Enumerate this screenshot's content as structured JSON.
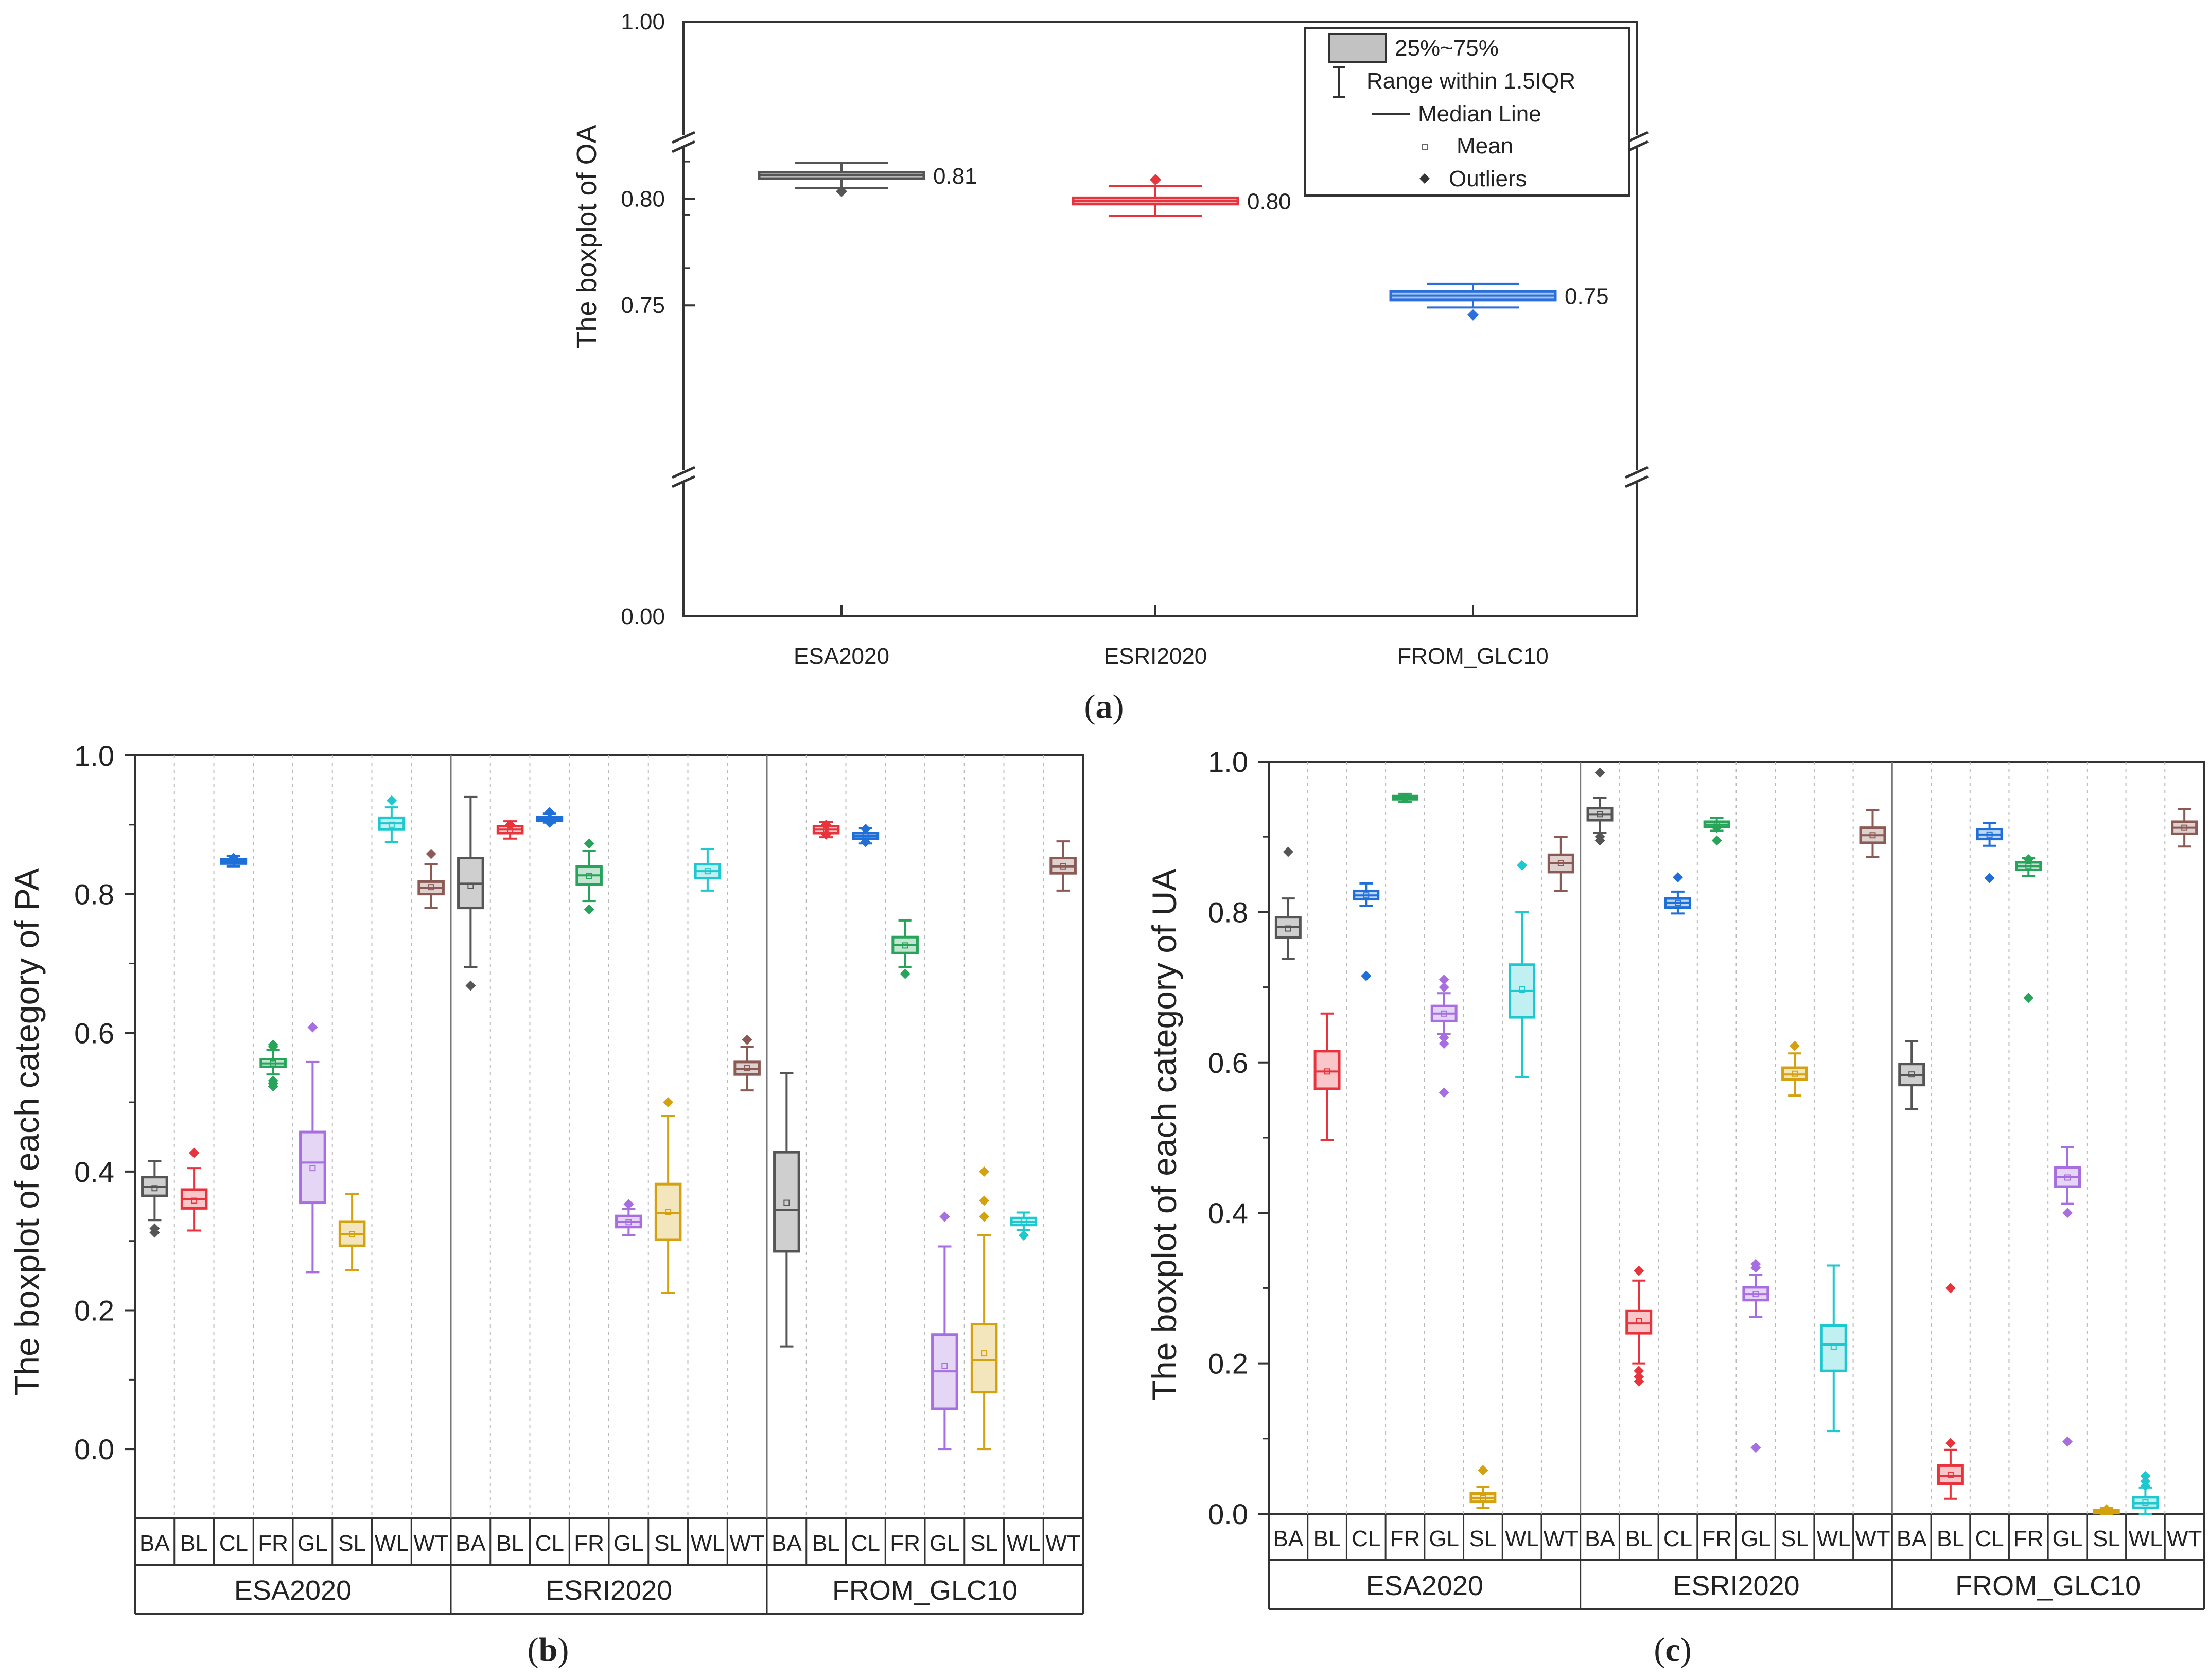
{
  "chart_data": [
    {
      "panel": "a",
      "type": "boxplot",
      "caption": {
        "open": "(",
        "letter": "a",
        "close": ")"
      },
      "ylabel": "The boxplot of OA",
      "y_axis": {
        "breaks": [
          [
            0.0,
            0.0
          ],
          [
            0.7,
            0.84
          ],
          [
            1.0,
            1.0
          ]
        ],
        "tick_labels": [
          "1.00",
          "0.80",
          "0.75",
          "0.00"
        ],
        "tick_values": [
          1.0,
          0.8,
          0.75,
          0.0
        ]
      },
      "categories": [
        "ESA2020",
        "ESRI2020",
        "FROM_GLC10"
      ],
      "colors": [
        "#555555",
        "#e8333d",
        "#2a6fdb"
      ],
      "boxes": [
        {
          "label": "0.81",
          "q1": 0.8095,
          "median": 0.811,
          "q3": 0.8125,
          "mean": 0.811,
          "wlow": 0.805,
          "whigh": 0.817,
          "outliers": [
            0.8035
          ]
        },
        {
          "label": "0.80",
          "q1": 0.7975,
          "median": 0.799,
          "q3": 0.8005,
          "mean": 0.799,
          "wlow": 0.792,
          "whigh": 0.806,
          "outliers": [
            0.809
          ]
        },
        {
          "label": "0.75",
          "q1": 0.7525,
          "median": 0.7545,
          "q3": 0.7565,
          "mean": 0.7545,
          "wlow": 0.749,
          "whigh": 0.76,
          "outliers": [
            0.7455
          ]
        }
      ],
      "legend": {
        "position": "top-right",
        "items": [
          "25%~75%",
          "Range within 1.5IQR",
          "Median Line",
          "Mean",
          "Outliers"
        ]
      }
    },
    {
      "panel": "b",
      "type": "boxplot",
      "caption": {
        "open": "(",
        "letter": "b",
        "close": ")"
      },
      "ylabel": "The boxplot of each category of PA",
      "ylim": [
        -0.1,
        1.0
      ],
      "yticks": [
        "1.0",
        "0.8",
        "0.6",
        "0.4",
        "0.2",
        "0.0"
      ],
      "ytick_values": [
        1.0,
        0.8,
        0.6,
        0.4,
        0.2,
        0.0
      ],
      "classes": [
        "BA",
        "BL",
        "CL",
        "FR",
        "GL",
        "SL",
        "WL",
        "WT"
      ],
      "class_colors": [
        "#555555",
        "#e8333d",
        "#1f6fd9",
        "#27a35a",
        "#a66ee0",
        "#d4a111",
        "#1dc8cf",
        "#8b5a55"
      ],
      "groups": [
        {
          "name": "ESA2020",
          "boxes": [
            {
              "q1": 0.365,
              "med": 0.378,
              "q3": 0.392,
              "mean": 0.376,
              "lo": 0.33,
              "hi": 0.415,
              "out": [
                0.312,
                0.318
              ]
            },
            {
              "q1": 0.347,
              "med": 0.36,
              "q3": 0.374,
              "mean": 0.358,
              "lo": 0.315,
              "hi": 0.405,
              "out": [
                0.427
              ]
            },
            {
              "q1": 0.844,
              "med": 0.847,
              "q3": 0.85,
              "mean": 0.847,
              "lo": 0.84,
              "hi": 0.855,
              "out": [
                0.852
              ]
            },
            {
              "q1": 0.551,
              "med": 0.556,
              "q3": 0.562,
              "mean": 0.556,
              "lo": 0.54,
              "hi": 0.575,
              "out": [
                0.583,
                0.58,
                0.531,
                0.527,
                0.523
              ]
            },
            {
              "q1": 0.355,
              "med": 0.413,
              "q3": 0.457,
              "mean": 0.405,
              "lo": 0.255,
              "hi": 0.558,
              "out": [
                0.608
              ]
            },
            {
              "q1": 0.293,
              "med": 0.31,
              "q3": 0.328,
              "mean": 0.31,
              "lo": 0.258,
              "hi": 0.368,
              "out": []
            },
            {
              "q1": 0.893,
              "med": 0.902,
              "q3": 0.91,
              "mean": 0.9,
              "lo": 0.875,
              "hi": 0.925,
              "out": [
                0.935
              ]
            },
            {
              "q1": 0.8,
              "med": 0.809,
              "q3": 0.818,
              "mean": 0.81,
              "lo": 0.78,
              "hi": 0.843,
              "out": [
                0.858
              ]
            }
          ]
        },
        {
          "name": "ESRI2020",
          "boxes": [
            {
              "q1": 0.78,
              "med": 0.815,
              "q3": 0.852,
              "mean": 0.812,
              "lo": 0.695,
              "hi": 0.94,
              "out": [
                0.668
              ]
            },
            {
              "q1": 0.888,
              "med": 0.893,
              "q3": 0.898,
              "mean": 0.893,
              "lo": 0.88,
              "hi": 0.905,
              "out": [
                0.9
              ]
            },
            {
              "q1": 0.906,
              "med": 0.908,
              "q3": 0.911,
              "mean": 0.908,
              "lo": 0.903,
              "hi": 0.916,
              "out": [
                0.918,
                0.903
              ]
            },
            {
              "q1": 0.814,
              "med": 0.827,
              "q3": 0.84,
              "mean": 0.826,
              "lo": 0.79,
              "hi": 0.862,
              "out": [
                0.873,
                0.778
              ]
            },
            {
              "q1": 0.32,
              "med": 0.328,
              "q3": 0.336,
              "mean": 0.327,
              "lo": 0.308,
              "hi": 0.346,
              "out": [
                0.353
              ]
            },
            {
              "q1": 0.302,
              "med": 0.34,
              "q3": 0.382,
              "mean": 0.342,
              "lo": 0.225,
              "hi": 0.48,
              "out": [
                0.5
              ]
            },
            {
              "q1": 0.823,
              "med": 0.833,
              "q3": 0.843,
              "mean": 0.833,
              "lo": 0.805,
              "hi": 0.865,
              "out": []
            },
            {
              "q1": 0.54,
              "med": 0.548,
              "q3": 0.558,
              "mean": 0.549,
              "lo": 0.517,
              "hi": 0.58,
              "out": [
                0.59
              ]
            }
          ]
        },
        {
          "name": "FROM_GLC10",
          "boxes": [
            {
              "q1": 0.285,
              "med": 0.345,
              "q3": 0.428,
              "mean": 0.355,
              "lo": 0.148,
              "hi": 0.542,
              "out": []
            },
            {
              "q1": 0.888,
              "med": 0.893,
              "q3": 0.898,
              "mean": 0.893,
              "lo": 0.882,
              "hi": 0.904,
              "out": [
                0.9,
                0.886
              ]
            },
            {
              "q1": 0.88,
              "med": 0.884,
              "q3": 0.888,
              "mean": 0.884,
              "lo": 0.873,
              "hi": 0.895,
              "out": [
                0.894,
                0.875
              ]
            },
            {
              "q1": 0.715,
              "med": 0.727,
              "q3": 0.738,
              "mean": 0.726,
              "lo": 0.695,
              "hi": 0.762,
              "out": [
                0.685
              ]
            },
            {
              "q1": 0.058,
              "med": 0.112,
              "q3": 0.165,
              "mean": 0.12,
              "lo": 0.0,
              "hi": 0.292,
              "out": [
                0.335
              ]
            },
            {
              "q1": 0.082,
              "med": 0.128,
              "q3": 0.18,
              "mean": 0.138,
              "lo": 0.0,
              "hi": 0.308,
              "out": [
                0.4,
                0.358,
                0.335
              ]
            },
            {
              "q1": 0.323,
              "med": 0.328,
              "q3": 0.333,
              "mean": 0.328,
              "lo": 0.316,
              "hi": 0.341,
              "out": [
                0.308
              ]
            },
            {
              "q1": 0.83,
              "med": 0.84,
              "q3": 0.852,
              "mean": 0.84,
              "lo": 0.805,
              "hi": 0.876,
              "out": []
            }
          ]
        }
      ]
    },
    {
      "panel": "c",
      "type": "boxplot",
      "caption": {
        "open": "(",
        "letter": "c",
        "close": ")"
      },
      "ylabel": "The boxplot of each category of UA",
      "ylim": [
        0.0,
        1.0
      ],
      "yticks": [
        "1.0",
        "0.8",
        "0.6",
        "0.4",
        "0.2",
        "0.0"
      ],
      "ytick_values": [
        1.0,
        0.8,
        0.6,
        0.4,
        0.2,
        0.0
      ],
      "classes": [
        "BA",
        "BL",
        "CL",
        "FR",
        "GL",
        "SL",
        "WL",
        "WT"
      ],
      "class_colors": [
        "#555555",
        "#e8333d",
        "#1f6fd9",
        "#27a35a",
        "#a66ee0",
        "#d4a111",
        "#1dc8cf",
        "#8b5a55"
      ],
      "groups": [
        {
          "name": "ESA2020",
          "boxes": [
            {
              "q1": 0.766,
              "med": 0.78,
              "q3": 0.793,
              "mean": 0.778,
              "lo": 0.738,
              "hi": 0.818,
              "out": [
                0.88
              ]
            },
            {
              "q1": 0.565,
              "med": 0.588,
              "q3": 0.615,
              "mean": 0.588,
              "lo": 0.497,
              "hi": 0.665,
              "out": []
            },
            {
              "q1": 0.817,
              "med": 0.822,
              "q3": 0.828,
              "mean": 0.822,
              "lo": 0.808,
              "hi": 0.838,
              "out": [
                0.715
              ]
            },
            {
              "q1": 0.95,
              "med": 0.952,
              "q3": 0.954,
              "mean": 0.952,
              "lo": 0.946,
              "hi": 0.957,
              "out": []
            },
            {
              "q1": 0.655,
              "med": 0.665,
              "q3": 0.675,
              "mean": 0.665,
              "lo": 0.638,
              "hi": 0.692,
              "out": [
                0.71,
                0.7,
                0.633,
                0.625,
                0.56
              ]
            },
            {
              "q1": 0.016,
              "med": 0.021,
              "q3": 0.027,
              "mean": 0.021,
              "lo": 0.008,
              "hi": 0.036,
              "out": [
                0.058
              ]
            },
            {
              "q1": 0.66,
              "med": 0.695,
              "q3": 0.73,
              "mean": 0.697,
              "lo": 0.58,
              "hi": 0.8,
              "out": [
                0.862
              ]
            },
            {
              "q1": 0.853,
              "med": 0.865,
              "q3": 0.876,
              "mean": 0.865,
              "lo": 0.828,
              "hi": 0.9,
              "out": []
            }
          ]
        },
        {
          "name": "ESRI2020",
          "boxes": [
            {
              "q1": 0.922,
              "med": 0.93,
              "q3": 0.938,
              "mean": 0.93,
              "lo": 0.905,
              "hi": 0.952,
              "out": [
                0.985,
                0.9,
                0.895
              ]
            },
            {
              "q1": 0.24,
              "med": 0.253,
              "q3": 0.27,
              "mean": 0.256,
              "lo": 0.2,
              "hi": 0.31,
              "out": [
                0.323,
                0.19,
                0.182,
                0.176
              ]
            },
            {
              "q1": 0.806,
              "med": 0.812,
              "q3": 0.818,
              "mean": 0.812,
              "lo": 0.798,
              "hi": 0.827,
              "out": [
                0.846
              ]
            },
            {
              "q1": 0.913,
              "med": 0.916,
              "q3": 0.92,
              "mean": 0.916,
              "lo": 0.908,
              "hi": 0.925,
              "out": [
                0.912,
                0.895
              ]
            },
            {
              "q1": 0.284,
              "med": 0.292,
              "q3": 0.301,
              "mean": 0.292,
              "lo": 0.262,
              "hi": 0.318,
              "out": [
                0.332,
                0.327,
                0.088
              ]
            },
            {
              "q1": 0.577,
              "med": 0.584,
              "q3": 0.593,
              "mean": 0.585,
              "lo": 0.556,
              "hi": 0.612,
              "out": [
                0.622
              ]
            },
            {
              "q1": 0.19,
              "med": 0.225,
              "q3": 0.25,
              "mean": 0.222,
              "lo": 0.11,
              "hi": 0.33,
              "out": []
            },
            {
              "q1": 0.892,
              "med": 0.902,
              "q3": 0.912,
              "mean": 0.902,
              "lo": 0.873,
              "hi": 0.935,
              "out": []
            }
          ]
        },
        {
          "name": "FROM_GLC10",
          "boxes": [
            {
              "q1": 0.57,
              "med": 0.583,
              "q3": 0.598,
              "mean": 0.584,
              "lo": 0.538,
              "hi": 0.628,
              "out": []
            },
            {
              "q1": 0.04,
              "med": 0.05,
              "q3": 0.064,
              "mean": 0.052,
              "lo": 0.02,
              "hi": 0.085,
              "out": [
                0.3,
                0.094
              ]
            },
            {
              "q1": 0.897,
              "med": 0.903,
              "q3": 0.91,
              "mean": 0.903,
              "lo": 0.888,
              "hi": 0.918,
              "out": [
                0.845
              ]
            },
            {
              "q1": 0.856,
              "med": 0.861,
              "q3": 0.866,
              "mean": 0.861,
              "lo": 0.848,
              "hi": 0.872,
              "out": [
                0.87,
                0.686
              ]
            },
            {
              "q1": 0.435,
              "med": 0.448,
              "q3": 0.46,
              "mean": 0.447,
              "lo": 0.412,
              "hi": 0.487,
              "out": [
                0.4,
                0.096
              ]
            },
            {
              "q1": 0.001,
              "med": 0.003,
              "q3": 0.005,
              "mean": 0.003,
              "lo": 0.0,
              "hi": 0.008,
              "out": [
                0.006
              ]
            },
            {
              "q1": 0.008,
              "med": 0.014,
              "q3": 0.022,
              "mean": 0.015,
              "lo": 0.0,
              "hi": 0.035,
              "out": [
                0.05,
                0.043,
                0.037
              ]
            },
            {
              "q1": 0.904,
              "med": 0.912,
              "q3": 0.92,
              "mean": 0.912,
              "lo": 0.887,
              "hi": 0.937,
              "out": []
            }
          ]
        }
      ]
    }
  ]
}
